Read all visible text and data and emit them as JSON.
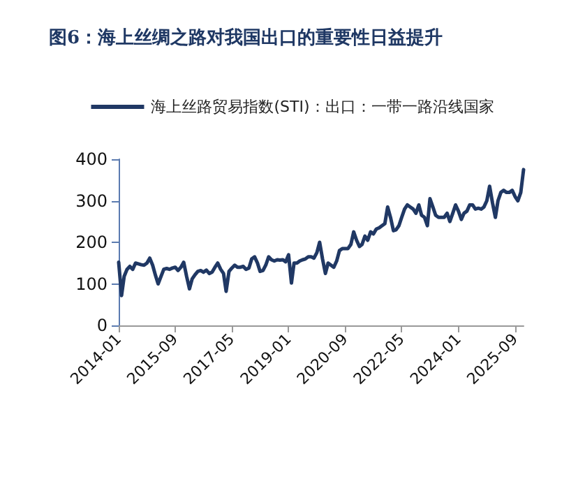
{
  "chart_data": {
    "type": "line",
    "title": "图6：海上丝绸之路对我国出口的重要性日益提升",
    "x": [
      "2014-01",
      "2014-02",
      "2014-03",
      "2014-04",
      "2014-05",
      "2014-06",
      "2014-07",
      "2014-08",
      "2014-09",
      "2014-10",
      "2014-11",
      "2014-12",
      "2015-01",
      "2015-02",
      "2015-03",
      "2015-04",
      "2015-05",
      "2015-06",
      "2015-07",
      "2015-08",
      "2015-09",
      "2015-10",
      "2015-11",
      "2015-12",
      "2016-01",
      "2016-02",
      "2016-03",
      "2016-04",
      "2016-05",
      "2016-06",
      "2016-07",
      "2016-08",
      "2016-09",
      "2016-10",
      "2016-11",
      "2016-12",
      "2017-01",
      "2017-02",
      "2017-03",
      "2017-04",
      "2017-05",
      "2017-06",
      "2017-07",
      "2017-08",
      "2017-09",
      "2017-10",
      "2017-11",
      "2017-12",
      "2018-01",
      "2018-02",
      "2018-03",
      "2018-04",
      "2018-05",
      "2018-06",
      "2018-07",
      "2018-08",
      "2018-09",
      "2018-10",
      "2018-11",
      "2018-12",
      "2019-01",
      "2019-02",
      "2019-03",
      "2019-04",
      "2019-05",
      "2019-06",
      "2019-07",
      "2019-08",
      "2019-09",
      "2019-10",
      "2019-11",
      "2019-12",
      "2020-01",
      "2020-02",
      "2020-03",
      "2020-04",
      "2020-05",
      "2020-06",
      "2020-07",
      "2020-08",
      "2020-09",
      "2020-10",
      "2020-11",
      "2020-12",
      "2021-01",
      "2021-02",
      "2021-03",
      "2021-04",
      "2021-05",
      "2021-06",
      "2021-07",
      "2021-08",
      "2021-09",
      "2021-10",
      "2021-11",
      "2021-12",
      "2022-01",
      "2022-02",
      "2022-03",
      "2022-04",
      "2022-05",
      "2022-06",
      "2022-07",
      "2022-08",
      "2022-09",
      "2022-10",
      "2022-11",
      "2022-12",
      "2023-01",
      "2023-02",
      "2023-03",
      "2023-04",
      "2023-05",
      "2023-06",
      "2023-07",
      "2023-08",
      "2023-09",
      "2023-10",
      "2023-11",
      "2023-12",
      "2024-01",
      "2024-02",
      "2024-03",
      "2024-04",
      "2024-05",
      "2024-06",
      "2024-07",
      "2024-08",
      "2024-09",
      "2024-10",
      "2024-11",
      "2024-12",
      "2025-01",
      "2025-02",
      "2025-03",
      "2025-04",
      "2025-05",
      "2025-06",
      "2025-07",
      "2025-08",
      "2025-09",
      "2025-10",
      "2025-11",
      "2025-12"
    ],
    "series": [
      {
        "name": "海上丝路贸易指数(STI)：出口：一带一路沿线国家",
        "color": "#203864",
        "values": [
          152,
          72,
          118,
          135,
          142,
          135,
          150,
          148,
          146,
          145,
          150,
          162,
          145,
          120,
          100,
          118,
          135,
          137,
          135,
          138,
          140,
          132,
          140,
          152,
          118,
          88,
          112,
          122,
          130,
          132,
          128,
          133,
          125,
          128,
          140,
          150,
          135,
          125,
          82,
          130,
          138,
          145,
          140,
          140,
          142,
          135,
          138,
          160,
          165,
          150,
          130,
          132,
          145,
          165,
          158,
          155,
          158,
          157,
          158,
          153,
          170,
          102,
          150,
          150,
          155,
          158,
          160,
          165,
          165,
          162,
          175,
          200,
          160,
          125,
          150,
          145,
          140,
          155,
          180,
          185,
          185,
          185,
          195,
          225,
          205,
          190,
          195,
          215,
          205,
          225,
          220,
          232,
          235,
          240,
          245,
          285,
          260,
          228,
          230,
          240,
          260,
          280,
          290,
          285,
          280,
          270,
          290,
          265,
          260,
          240,
          305,
          285,
          265,
          260,
          260,
          260,
          270,
          250,
          270,
          290,
          275,
          255,
          270,
          275,
          290,
          290,
          280,
          282,
          280,
          285,
          300,
          335,
          295,
          260,
          300,
          320,
          325,
          320,
          320,
          325,
          310,
          300,
          320,
          375
        ]
      }
    ],
    "xlim": [
      "2014-01",
      "2025-12"
    ],
    "xticks": [
      "2014-01",
      "2015-09",
      "2017-05",
      "2019-01",
      "2020-09",
      "2022-05",
      "2024-01",
      "2025-09"
    ],
    "ylim": [
      0,
      400
    ],
    "yticks": [
      0,
      100,
      200,
      300,
      400
    ],
    "grid": false,
    "legend": "top",
    "marker": "none",
    "line_style": "solid"
  }
}
